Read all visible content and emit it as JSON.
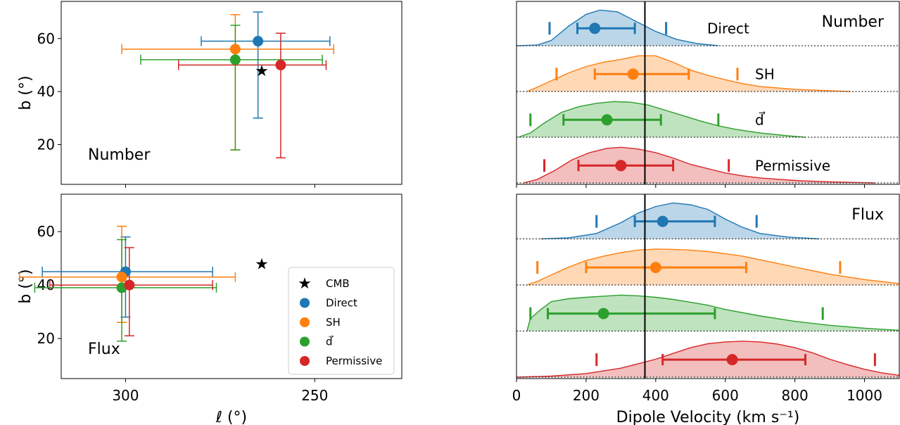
{
  "colors": {
    "Direct": "#1f77b4",
    "SH": "#ff7f0e",
    "d": "#2ca02c",
    "Permissive": "#d62728",
    "CMB": "#000000"
  },
  "chart_data": [
    {
      "type": "scatter",
      "panel": "left-top",
      "annotation": "Number",
      "ylabel": "b (°)",
      "xlabel": "",
      "xlim": [
        317,
        227
      ],
      "ylim": [
        5,
        74
      ],
      "x_inverted": true,
      "yticks": [
        20,
        40,
        60
      ],
      "points": [
        {
          "name": "Direct",
          "l": 265,
          "b": 59,
          "l_err": [
            280,
            246
          ],
          "b_err": [
            30,
            70
          ]
        },
        {
          "name": "SH",
          "l": 271,
          "b": 56,
          "l_err": [
            301,
            245
          ],
          "b_err": [
            18,
            69
          ]
        },
        {
          "name": "d",
          "l": 271,
          "b": 52,
          "l_err": [
            296,
            248
          ],
          "b_err": [
            18,
            65
          ]
        },
        {
          "name": "Permissive",
          "l": 259,
          "b": 50,
          "l_err": [
            286,
            247
          ],
          "b_err": [
            15,
            62
          ]
        }
      ],
      "cmb": {
        "l": 264,
        "b": 48
      }
    },
    {
      "type": "scatter",
      "panel": "left-bottom",
      "annotation": "Flux",
      "ylabel": "b (°)",
      "xlabel": "ℓ (°)",
      "xlim": [
        317,
        227
      ],
      "ylim": [
        5,
        74
      ],
      "x_inverted": true,
      "xticks": [
        300,
        250
      ],
      "yticks": [
        20,
        40,
        60
      ],
      "points": [
        {
          "name": "Direct",
          "l": 300,
          "b": 45,
          "l_err": [
            322,
            277
          ],
          "b_err": [
            28,
            58
          ]
        },
        {
          "name": "SH",
          "l": 301,
          "b": 43,
          "l_err": [
            328,
            271
          ],
          "b_err": [
            26,
            62
          ]
        },
        {
          "name": "d",
          "l": 301,
          "b": 39,
          "l_err": [
            324,
            276
          ],
          "b_err": [
            19,
            57
          ]
        },
        {
          "name": "Permissive",
          "l": 299,
          "b": 40,
          "l_err": [
            320,
            277
          ],
          "b_err": [
            21,
            54
          ]
        }
      ],
      "cmb": {
        "l": 264,
        "b": 48
      },
      "legend": {
        "placement": "lower right",
        "entries": [
          "CMB",
          "Direct",
          "SH",
          "d⃗",
          "Permissive"
        ]
      }
    },
    {
      "type": "area",
      "panel": "right-top",
      "title": "Number",
      "xlim": [
        0,
        1100
      ],
      "cmb_velocity": 369,
      "series": [
        {
          "name": "Direct",
          "label": "Direct",
          "median": 225,
          "ci68": [
            175,
            340
          ],
          "ci95": [
            95,
            430
          ],
          "range": [
            0,
            580
          ],
          "density": [
            [
              0,
              0
            ],
            [
              60,
              0.02
            ],
            [
              100,
              0.15
            ],
            [
              150,
              0.55
            ],
            [
              200,
              0.88
            ],
            [
              240,
              1.0
            ],
            [
              290,
              0.95
            ],
            [
              340,
              0.7
            ],
            [
              400,
              0.4
            ],
            [
              460,
              0.18
            ],
            [
              520,
              0.06
            ],
            [
              580,
              0
            ]
          ]
        },
        {
          "name": "SH",
          "label": "SH",
          "median": 335,
          "ci68": [
            225,
            495
          ],
          "ci95": [
            115,
            635
          ],
          "range": [
            30,
            960
          ],
          "density": [
            [
              30,
              0
            ],
            [
              60,
              0.12
            ],
            [
              100,
              0.3
            ],
            [
              150,
              0.52
            ],
            [
              200,
              0.7
            ],
            [
              250,
              0.82
            ],
            [
              300,
              0.9
            ],
            [
              350,
              1.0
            ],
            [
              400,
              1.0
            ],
            [
              450,
              0.82
            ],
            [
              500,
              0.6
            ],
            [
              550,
              0.45
            ],
            [
              600,
              0.33
            ],
            [
              650,
              0.22
            ],
            [
              700,
              0.14
            ],
            [
              800,
              0.06
            ],
            [
              900,
              0.02
            ],
            [
              960,
              0
            ]
          ]
        },
        {
          "name": "d",
          "label": "d⃗",
          "median": 260,
          "ci68": [
            135,
            415
          ],
          "ci95": [
            40,
            580
          ],
          "range": [
            5,
            830
          ],
          "density": [
            [
              5,
              0
            ],
            [
              40,
              0.12
            ],
            [
              80,
              0.4
            ],
            [
              130,
              0.7
            ],
            [
              180,
              0.86
            ],
            [
              230,
              0.95
            ],
            [
              280,
              1.0
            ],
            [
              330,
              0.98
            ],
            [
              380,
              0.9
            ],
            [
              430,
              0.75
            ],
            [
              480,
              0.6
            ],
            [
              530,
              0.45
            ],
            [
              580,
              0.32
            ],
            [
              630,
              0.22
            ],
            [
              700,
              0.12
            ],
            [
              780,
              0.04
            ],
            [
              830,
              0
            ]
          ]
        },
        {
          "name": "Permissive",
          "label": "Permissive",
          "median": 300,
          "ci68": [
            178,
            450
          ],
          "ci95": [
            80,
            610
          ],
          "range": [
            20,
            1030
          ],
          "density": [
            [
              20,
              0
            ],
            [
              60,
              0.1
            ],
            [
              110,
              0.35
            ],
            [
              160,
              0.65
            ],
            [
              210,
              0.85
            ],
            [
              260,
              0.97
            ],
            [
              300,
              1.0
            ],
            [
              350,
              0.95
            ],
            [
              400,
              0.85
            ],
            [
              450,
              0.7
            ],
            [
              500,
              0.52
            ],
            [
              550,
              0.4
            ],
            [
              600,
              0.28
            ],
            [
              650,
              0.2
            ],
            [
              700,
              0.14
            ],
            [
              800,
              0.07
            ],
            [
              900,
              0.03
            ],
            [
              1030,
              0
            ]
          ]
        }
      ]
    },
    {
      "type": "area",
      "panel": "right-bottom",
      "title": "Flux",
      "xlabel": "Dipole Velocity (km s⁻¹)",
      "xlim": [
        0,
        1100
      ],
      "xticks": [
        0,
        200,
        400,
        600,
        800,
        1000
      ],
      "cmb_velocity": 369,
      "series": [
        {
          "name": "Direct",
          "median": 420,
          "ci68": [
            340,
            570
          ],
          "ci95": [
            230,
            690
          ],
          "range": [
            70,
            870
          ],
          "density": [
            [
              70,
              0
            ],
            [
              150,
              0.03
            ],
            [
              230,
              0.15
            ],
            [
              300,
              0.45
            ],
            [
              350,
              0.72
            ],
            [
              400,
              0.9
            ],
            [
              450,
              1.0
            ],
            [
              500,
              0.95
            ],
            [
              550,
              0.82
            ],
            [
              600,
              0.55
            ],
            [
              650,
              0.32
            ],
            [
              700,
              0.15
            ],
            [
              780,
              0.05
            ],
            [
              870,
              0
            ]
          ]
        },
        {
          "name": "SH",
          "median": 400,
          "ci68": [
            200,
            660
          ],
          "ci95": [
            60,
            930
          ],
          "range": [
            30,
            1100
          ],
          "density": [
            [
              30,
              0
            ],
            [
              60,
              0.1
            ],
            [
              100,
              0.28
            ],
            [
              150,
              0.5
            ],
            [
              200,
              0.68
            ],
            [
              250,
              0.8
            ],
            [
              300,
              0.9
            ],
            [
              350,
              0.97
            ],
            [
              400,
              1.0
            ],
            [
              450,
              0.99
            ],
            [
              500,
              0.97
            ],
            [
              550,
              0.93
            ],
            [
              600,
              0.87
            ],
            [
              650,
              0.8
            ],
            [
              700,
              0.7
            ],
            [
              800,
              0.5
            ],
            [
              900,
              0.3
            ],
            [
              1000,
              0.15
            ],
            [
              1100,
              0.04
            ]
          ]
        },
        {
          "name": "d",
          "median": 250,
          "ci68": [
            90,
            570
          ],
          "ci95": [
            40,
            880
          ],
          "range": [
            30,
            1100
          ],
          "density": [
            [
              30,
              0
            ],
            [
              40,
              0.35
            ],
            [
              70,
              0.6
            ],
            [
              100,
              0.82
            ],
            [
              150,
              0.9
            ],
            [
              200,
              0.94
            ],
            [
              250,
              0.97
            ],
            [
              300,
              1.0
            ],
            [
              350,
              0.98
            ],
            [
              400,
              0.94
            ],
            [
              450,
              0.88
            ],
            [
              500,
              0.8
            ],
            [
              550,
              0.72
            ],
            [
              600,
              0.6
            ],
            [
              700,
              0.42
            ],
            [
              800,
              0.27
            ],
            [
              900,
              0.16
            ],
            [
              1000,
              0.08
            ],
            [
              1100,
              0.02
            ]
          ]
        },
        {
          "name": "Permissive",
          "median": 620,
          "ci68": [
            420,
            830
          ],
          "ci95": [
            230,
            1030
          ],
          "range": [
            0,
            1100
          ],
          "density": [
            [
              0,
              0
            ],
            [
              100,
              0.03
            ],
            [
              200,
              0.1
            ],
            [
              300,
              0.25
            ],
            [
              400,
              0.5
            ],
            [
              450,
              0.66
            ],
            [
              500,
              0.82
            ],
            [
              550,
              0.93
            ],
            [
              600,
              0.98
            ],
            [
              650,
              1.0
            ],
            [
              700,
              0.98
            ],
            [
              750,
              0.92
            ],
            [
              800,
              0.82
            ],
            [
              850,
              0.68
            ],
            [
              900,
              0.5
            ],
            [
              950,
              0.35
            ],
            [
              1000,
              0.22
            ],
            [
              1050,
              0.12
            ],
            [
              1100,
              0.05
            ]
          ]
        }
      ]
    }
  ]
}
